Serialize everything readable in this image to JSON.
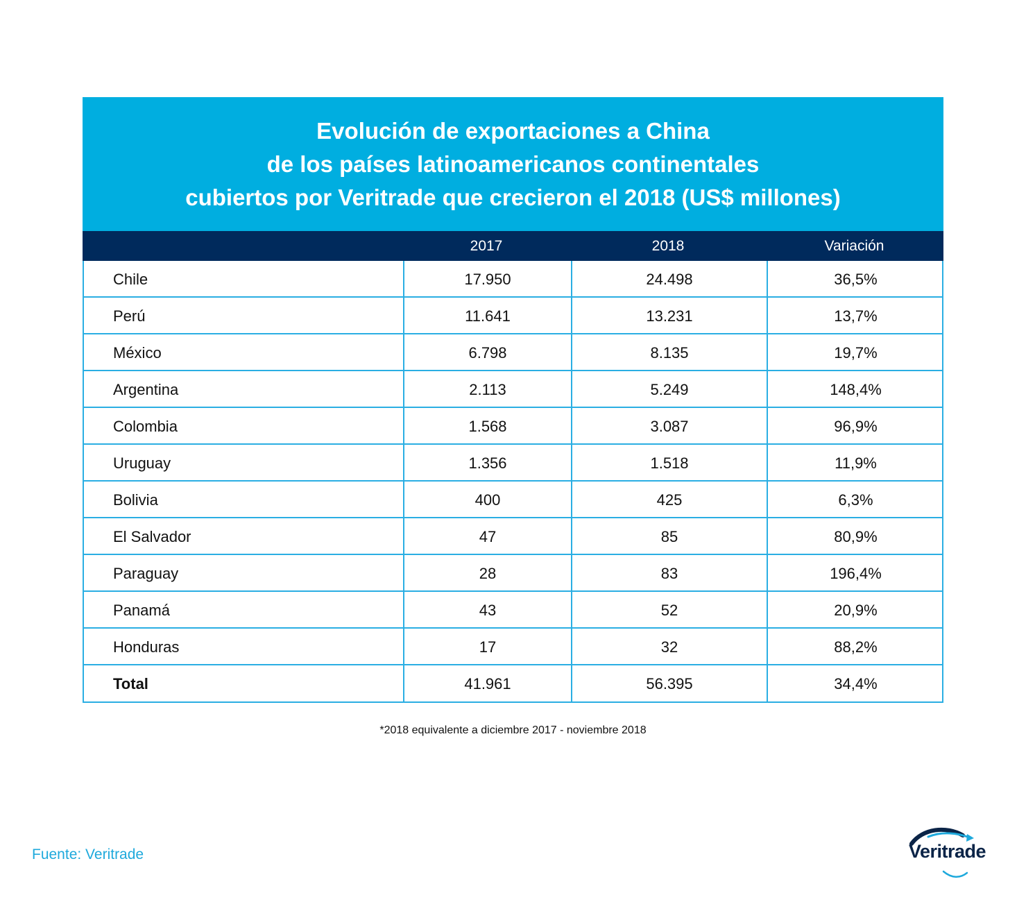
{
  "title_lines": [
    "Evolución de exportaciones a China",
    "de los países latinoamericanos continentales",
    "cubiertos por Veritrade que crecieron el 2018 (US$ millones)"
  ],
  "header": {
    "col0": "",
    "col1": "2017",
    "col2": "2018",
    "col3": "Variación"
  },
  "rows": [
    {
      "country": "Chile",
      "y2017": "17.950",
      "y2018": "24.498",
      "variation": "36,5%"
    },
    {
      "country": "Perú",
      "y2017": "11.641",
      "y2018": "13.231",
      "variation": "13,7%"
    },
    {
      "country": "México",
      "y2017": "6.798",
      "y2018": "8.135",
      "variation": "19,7%"
    },
    {
      "country": "Argentina",
      "y2017": "2.113",
      "y2018": "5.249",
      "variation": "148,4%"
    },
    {
      "country": "Colombia",
      "y2017": "1.568",
      "y2018": "3.087",
      "variation": "96,9%"
    },
    {
      "country": "Uruguay",
      "y2017": "1.356",
      "y2018": "1.518",
      "variation": "11,9%"
    },
    {
      "country": "Bolivia",
      "y2017": "400",
      "y2018": "425",
      "variation": "6,3%"
    },
    {
      "country": "El Salvador",
      "y2017": "47",
      "y2018": "85",
      "variation": "80,9%"
    },
    {
      "country": "Paraguay",
      "y2017": "28",
      "y2018": "83",
      "variation": "196,4%"
    },
    {
      "country": "Panamá",
      "y2017": "43",
      "y2018": "52",
      "variation": "20,9%"
    },
    {
      "country": "Honduras",
      "y2017": "17",
      "y2018": "32",
      "variation": "88,2%"
    }
  ],
  "total": {
    "label": "Total",
    "y2017": "41.961",
    "y2018": "56.395",
    "variation": "34,4%"
  },
  "footnote": "*2018 equivalente a diciembre 2017 - noviembre 2018",
  "source": "Fuente: Veritrade",
  "logo": {
    "text": "Veritrade",
    "icon": "arrow-swoosh-icon"
  },
  "colors": {
    "title_bg": "#00aee0",
    "header_bg": "#002a5c",
    "grid": "#2aaee3",
    "source_text": "#1ea9dc",
    "logo_text": "#0b2447"
  },
  "chart_data": {
    "type": "table",
    "title": "Evolución de exportaciones a China de los países latinoamericanos continentales cubiertos por Veritrade que crecieron el 2018 (US$ millones)",
    "columns": [
      "",
      "2017",
      "2018",
      "Variación"
    ],
    "rows": [
      [
        "Chile",
        17950,
        24498,
        36.5
      ],
      [
        "Perú",
        11641,
        13231,
        13.7
      ],
      [
        "México",
        6798,
        8135,
        19.7
      ],
      [
        "Argentina",
        2113,
        5249,
        148.4
      ],
      [
        "Colombia",
        1568,
        3087,
        96.9
      ],
      [
        "Uruguay",
        1356,
        1518,
        11.9
      ],
      [
        "Bolivia",
        400,
        425,
        6.3
      ],
      [
        "El Salvador",
        47,
        85,
        80.9
      ],
      [
        "Paraguay",
        28,
        83,
        196.4
      ],
      [
        "Panamá",
        43,
        52,
        20.9
      ],
      [
        "Honduras",
        17,
        32,
        88.2
      ],
      [
        "Total",
        41961,
        56395,
        34.4
      ]
    ]
  }
}
